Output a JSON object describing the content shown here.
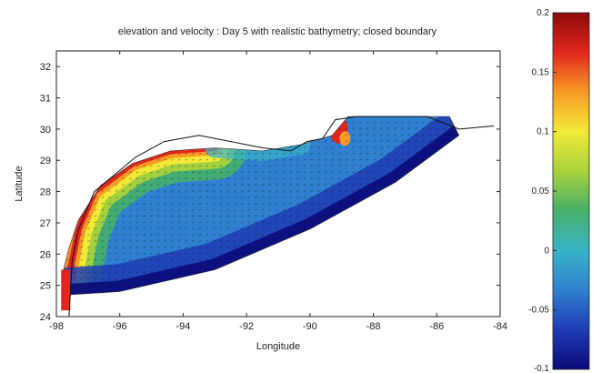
{
  "chart_data": {
    "type": "heatmap",
    "title": "elevation and velocity : Day 5 with realistic bathymetry; closed boundary",
    "xlabel": "Longitude",
    "ylabel": "Latitude",
    "xlim": [
      -98,
      -84
    ],
    "ylim": [
      24,
      32.5
    ],
    "x_ticks": [
      -98,
      -96,
      -94,
      -92,
      -90,
      -88,
      -86,
      -84
    ],
    "x_tick_labels": [
      "-98",
      "-96",
      "-94",
      "-92",
      "-90",
      "-88",
      "-86",
      "-84"
    ],
    "y_ticks": [
      24,
      25,
      26,
      27,
      28,
      29,
      30,
      31,
      32
    ],
    "y_tick_labels": [
      "24",
      "25",
      "26",
      "27",
      "28",
      "29",
      "30",
      "31",
      "32"
    ],
    "colorbar": {
      "range": [
        -0.1,
        0.2
      ],
      "ticks": [
        -0.1,
        -0.05,
        0,
        0.05,
        0.1,
        0.15,
        0.2
      ],
      "tick_labels": [
        "-0.1",
        "-0.05",
        "0",
        "0.05",
        "0.1",
        "0.15",
        "0.2"
      ],
      "colormap": [
        "#0a0a7a",
        "#1e3cb4",
        "#2f80d0",
        "#38b4c8",
        "#46b06a",
        "#a8d23c",
        "#f2ea36",
        "#f79a26",
        "#e2261e",
        "#8c0a0a"
      ]
    },
    "coastline": [
      [
        -97.6,
        24
      ],
      [
        -97.5,
        25.8
      ],
      [
        -97.3,
        26.8
      ],
      [
        -96.8,
        28.0
      ],
      [
        -95.5,
        29.1
      ],
      [
        -94.6,
        29.6
      ],
      [
        -93.5,
        29.8
      ],
      [
        -92.5,
        29.6
      ],
      [
        -91.5,
        29.4
      ],
      [
        -90.6,
        29.3
      ],
      [
        -90.1,
        29.6
      ],
      [
        -89.6,
        29.7
      ],
      [
        -89.2,
        30.3
      ],
      [
        -88.5,
        30.4
      ],
      [
        -87.5,
        30.4
      ],
      [
        -86.3,
        30.4
      ],
      [
        -85.3,
        30.0
      ],
      [
        -84.2,
        30.1
      ]
    ],
    "domain_outline": [
      [
        -97.8,
        25.4
      ],
      [
        -97.6,
        24.7
      ],
      [
        -96.0,
        24.8
      ],
      [
        -93.0,
        25.5
      ],
      [
        -90.0,
        26.8
      ],
      [
        -87.3,
        28.3
      ],
      [
        -85.3,
        29.8
      ],
      [
        -85.6,
        30.4
      ],
      [
        -87.3,
        30.4
      ],
      [
        -88.8,
        30.4
      ],
      [
        -89.3,
        29.8
      ],
      [
        -90.3,
        29.5
      ],
      [
        -91.5,
        29.3
      ],
      [
        -93.0,
        29.4
      ],
      [
        -94.4,
        29.3
      ],
      [
        -95.6,
        28.9
      ],
      [
        -96.6,
        28.2
      ],
      [
        -97.3,
        27.1
      ],
      [
        -97.6,
        26.2
      ]
    ],
    "elevation_pattern": "elevation highest (0.1-0.2) along the Texas coast and in the northeast corner near the Mississippi delta; near 0 across the mid shelf; lowest (-0.05 to -0.1) along the southern open edge",
    "velocity_field": "dense black arrows over the whole domain, pointing mainly along the coast"
  }
}
